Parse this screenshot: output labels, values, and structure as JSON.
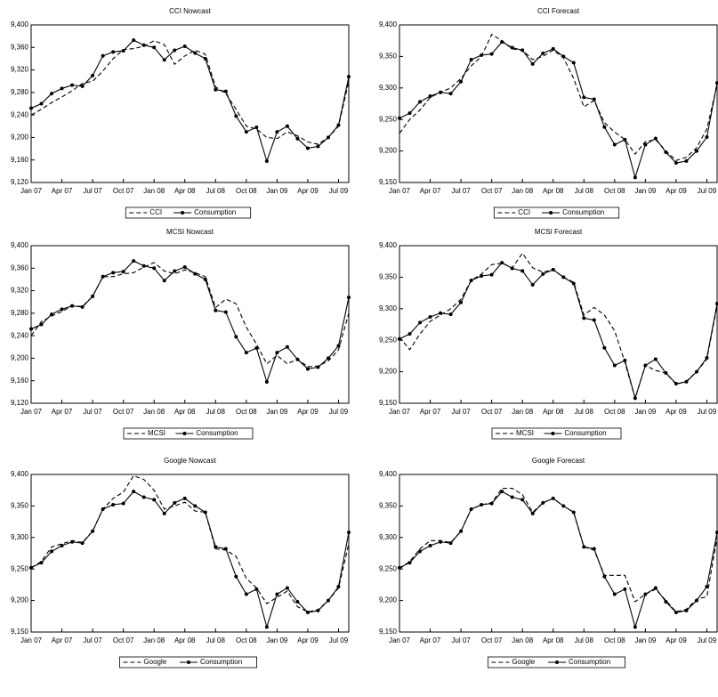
{
  "chart_data": [
    {
      "type": "line",
      "title": "CCI Nowcast",
      "legend": "bottom",
      "categories": [
        "Jan 07",
        null,
        null,
        "Apr 07",
        null,
        null,
        "Jul 07",
        null,
        null,
        "Oct 07",
        null,
        null,
        "Jan 08",
        null,
        null,
        "Apr 08",
        null,
        null,
        "Jul 08",
        null,
        null,
        "Oct 08",
        null,
        null,
        "Jan 09",
        null,
        null,
        "Apr 09",
        null,
        null,
        "Jul 09",
        null
      ],
      "ylim": [
        9120,
        9400
      ],
      "yticks": [
        {
          "value": 9120,
          "label": "9,120"
        },
        {
          "value": 9160,
          "label": "9,160"
        },
        {
          "value": 9200,
          "label": "9,200"
        },
        {
          "value": 9240,
          "label": "9,240"
        },
        {
          "value": 9280,
          "label": "9,280"
        },
        {
          "value": 9320,
          "label": "9,320"
        },
        {
          "value": 9360,
          "label": "9,360"
        },
        {
          "value": 9400,
          "label": "9,400"
        }
      ],
      "series": [
        {
          "name": "CCI",
          "color": "#000000",
          "style": "dashed",
          "values": [
            9240,
            9250,
            9262,
            9272,
            9283,
            9296,
            9300,
            9318,
            9340,
            9356,
            9358,
            9362,
            9372,
            9365,
            9330,
            9345,
            9355,
            9348,
            9290,
            9278,
            9250,
            9220,
            9215,
            9200,
            9198,
            9210,
            9203,
            9192,
            9188,
            9200,
            9220,
            9300
          ]
        },
        {
          "name": "Consumption",
          "color": "#000000",
          "style": "solid-markers",
          "values": [
            9252,
            9260,
            9278,
            9287,
            9293,
            9291,
            9310,
            9345,
            9352,
            9354,
            9373,
            9364,
            9360,
            9338,
            9355,
            9362,
            9350,
            9340,
            9285,
            9282,
            9238,
            9210,
            9218,
            9158,
            9210,
            9220,
            9198,
            9181,
            9184,
            9200,
            9222,
            9308
          ]
        }
      ]
    },
    {
      "type": "line",
      "title": "CCI Forecast",
      "legend": "bottom",
      "categories": [
        "Jan 07",
        null,
        null,
        "Apr 07",
        null,
        null,
        "Jul 07",
        null,
        null,
        "Oct 07",
        null,
        null,
        "Jan 08",
        null,
        null,
        "Apr 08",
        null,
        null,
        "Jul 08",
        null,
        null,
        "Oct 08",
        null,
        null,
        "Jan 09",
        null,
        null,
        "Apr 09",
        null,
        null,
        "Jul 09",
        null
      ],
      "ylim": [
        9150,
        9400
      ],
      "yticks": [
        {
          "value": 9150,
          "label": "9,150"
        },
        {
          "value": 9200,
          "label": "9,200"
        },
        {
          "value": 9250,
          "label": "9,250"
        },
        {
          "value": 9300,
          "label": "9,300"
        },
        {
          "value": 9350,
          "label": "9,350"
        },
        {
          "value": 9400,
          "label": "9,400"
        }
      ],
      "series": [
        {
          "name": "CCI",
          "color": "#000000",
          "style": "dashed",
          "values": [
            9228,
            9250,
            9265,
            9285,
            9293,
            9300,
            9315,
            9335,
            9350,
            9385,
            9375,
            9362,
            9360,
            9345,
            9350,
            9360,
            9348,
            9315,
            9270,
            9280,
            9245,
            9230,
            9218,
            9195,
            9215,
            9218,
            9200,
            9185,
            9190,
            9205,
            9235,
            9305
          ]
        },
        {
          "name": "Consumption",
          "color": "#000000",
          "style": "solid-markers",
          "values": [
            9252,
            9260,
            9278,
            9287,
            9293,
            9291,
            9310,
            9345,
            9352,
            9354,
            9373,
            9364,
            9360,
            9338,
            9355,
            9362,
            9350,
            9340,
            9285,
            9282,
            9238,
            9210,
            9218,
            9158,
            9210,
            9220,
            9198,
            9181,
            9184,
            9200,
            9222,
            9308
          ]
        }
      ]
    },
    {
      "type": "line",
      "title": "MCSI Nowcast",
      "legend": "bottom",
      "categories": [
        "Jan 07",
        null,
        null,
        "Apr 07",
        null,
        null,
        "Jul 07",
        null,
        null,
        "Oct 07",
        null,
        null,
        "Jan 08",
        null,
        null,
        "Apr 08",
        null,
        null,
        "Jul 08",
        null,
        null,
        "Oct 08",
        null,
        null,
        "Jan 09",
        null,
        null,
        "Apr 09",
        null,
        null,
        "Jul 09",
        null
      ],
      "ylim": [
        9120,
        9400
      ],
      "yticks": [
        {
          "value": 9120,
          "label": "9,120"
        },
        {
          "value": 9160,
          "label": "9,160"
        },
        {
          "value": 9200,
          "label": "9,200"
        },
        {
          "value": 9240,
          "label": "9,240"
        },
        {
          "value": 9280,
          "label": "9,280"
        },
        {
          "value": 9320,
          "label": "9,320"
        },
        {
          "value": 9360,
          "label": "9,360"
        },
        {
          "value": 9400,
          "label": "9,400"
        }
      ],
      "series": [
        {
          "name": "MCSI",
          "color": "#000000",
          "style": "dashed",
          "values": [
            9240,
            9265,
            9275,
            9283,
            9293,
            9292,
            9310,
            9345,
            9345,
            9350,
            9352,
            9362,
            9370,
            9355,
            9350,
            9357,
            9352,
            9345,
            9290,
            9305,
            9297,
            9255,
            9225,
            9190,
            9205,
            9190,
            9198,
            9185,
            9186,
            9195,
            9215,
            9280
          ]
        },
        {
          "name": "Consumption",
          "color": "#000000",
          "style": "solid-markers",
          "values": [
            9252,
            9260,
            9278,
            9287,
            9293,
            9291,
            9310,
            9345,
            9352,
            9354,
            9373,
            9364,
            9360,
            9338,
            9355,
            9362,
            9350,
            9340,
            9285,
            9282,
            9238,
            9210,
            9218,
            9158,
            9210,
            9220,
            9198,
            9181,
            9184,
            9200,
            9222,
            9308
          ]
        }
      ]
    },
    {
      "type": "line",
      "title": "MCSI Forecast",
      "legend": "bottom",
      "categories": [
        "Jan 07",
        null,
        null,
        "Apr 07",
        null,
        null,
        "Jul 07",
        null,
        null,
        "Oct 07",
        null,
        null,
        "Jan 08",
        null,
        null,
        "Apr 08",
        null,
        null,
        "Jul 08",
        null,
        null,
        "Oct 08",
        null,
        null,
        "Jan 09",
        null,
        null,
        "Apr 09",
        null,
        null,
        "Jul 09",
        null
      ],
      "ylim": [
        9150,
        9400
      ],
      "yticks": [
        {
          "value": 9150,
          "label": "9,150"
        },
        {
          "value": 9200,
          "label": "9,200"
        },
        {
          "value": 9250,
          "label": "9,250"
        },
        {
          "value": 9300,
          "label": "9,300"
        },
        {
          "value": 9350,
          "label": "9,350"
        },
        {
          "value": 9400,
          "label": "9,400"
        }
      ],
      "series": [
        {
          "name": "MCSI",
          "color": "#000000",
          "style": "dashed",
          "values": [
            9255,
            9235,
            9260,
            9280,
            9290,
            9300,
            9315,
            9345,
            9355,
            9370,
            9372,
            9365,
            9388,
            9365,
            9358,
            9362,
            9350,
            9342,
            9290,
            9302,
            9290,
            9265,
            9215,
            9158,
            9210,
            9202,
            9198,
            9180,
            9185,
            9200,
            9220,
            9305
          ]
        },
        {
          "name": "Consumption",
          "color": "#000000",
          "style": "solid-markers",
          "values": [
            9252,
            9260,
            9278,
            9287,
            9293,
            9291,
            9310,
            9345,
            9352,
            9354,
            9373,
            9364,
            9360,
            9338,
            9355,
            9362,
            9350,
            9340,
            9285,
            9282,
            9238,
            9210,
            9218,
            9158,
            9210,
            9220,
            9198,
            9181,
            9184,
            9200,
            9222,
            9308
          ]
        }
      ]
    },
    {
      "type": "line",
      "title": "Google Nowcast",
      "legend": "bottom",
      "categories": [
        "Jan 07",
        null,
        null,
        "Apr 07",
        null,
        null,
        "Jul 07",
        null,
        null,
        "Oct 07",
        null,
        null,
        "Jan 08",
        null,
        null,
        "Apr 08",
        null,
        null,
        "Jul 08",
        null,
        null,
        "Oct 08",
        null,
        null,
        "Jan 09",
        null,
        null,
        "Apr 09",
        null,
        null,
        "Jul 09",
        null
      ],
      "ylim": [
        9150,
        9400
      ],
      "yticks": [
        {
          "value": 9150,
          "label": "9,150"
        },
        {
          "value": 9200,
          "label": "9,200"
        },
        {
          "value": 9250,
          "label": "9,250"
        },
        {
          "value": 9300,
          "label": "9,300"
        },
        {
          "value": 9350,
          "label": "9,350"
        },
        {
          "value": 9400,
          "label": "9,400"
        }
      ],
      "series": [
        {
          "name": "Google",
          "color": "#000000",
          "style": "dashed",
          "values": [
            9252,
            9262,
            9285,
            9290,
            9295,
            9292,
            9310,
            9345,
            9362,
            9372,
            9398,
            9392,
            9375,
            9345,
            9350,
            9356,
            9342,
            9340,
            9282,
            9280,
            9270,
            9235,
            9220,
            9195,
            9205,
            9215,
            9190,
            9182,
            9185,
            9200,
            9220,
            9290
          ]
        },
        {
          "name": "Consumption",
          "color": "#000000",
          "style": "solid-markers",
          "values": [
            9252,
            9260,
            9278,
            9287,
            9293,
            9291,
            9310,
            9345,
            9352,
            9354,
            9373,
            9364,
            9360,
            9338,
            9355,
            9362,
            9350,
            9340,
            9285,
            9282,
            9238,
            9210,
            9218,
            9158,
            9210,
            9220,
            9198,
            9181,
            9184,
            9200,
            9222,
            9308
          ]
        }
      ]
    },
    {
      "type": "line",
      "title": "Google Forecast",
      "legend": "bottom",
      "categories": [
        "Jan 07",
        null,
        null,
        "Apr 07",
        null,
        null,
        "Jul 07",
        null,
        null,
        "Oct 07",
        null,
        null,
        "Jan 08",
        null,
        null,
        "Apr 08",
        null,
        null,
        "Jul 08",
        null,
        null,
        "Oct 08",
        null,
        null,
        "Jan 09",
        null,
        null,
        "Apr 09",
        null,
        null,
        "Jul 09",
        null
      ],
      "ylim": [
        9150,
        9400
      ],
      "yticks": [
        {
          "value": 9150,
          "label": "9,150"
        },
        {
          "value": 9200,
          "label": "9,200"
        },
        {
          "value": 9250,
          "label": "9,250"
        },
        {
          "value": 9300,
          "label": "9,300"
        },
        {
          "value": 9350,
          "label": "9,350"
        },
        {
          "value": 9400,
          "label": "9,400"
        }
      ],
      "series": [
        {
          "name": "Google",
          "color": "#000000",
          "style": "dashed",
          "values": [
            9250,
            9262,
            9282,
            9295,
            9295,
            9292,
            9310,
            9345,
            9352,
            9355,
            9378,
            9378,
            9368,
            9340,
            9355,
            9362,
            9350,
            9340,
            9285,
            9280,
            9240,
            9240,
            9240,
            9198,
            9210,
            9218,
            9200,
            9182,
            9186,
            9202,
            9206,
            9300
          ]
        },
        {
          "name": "Consumption",
          "color": "#000000",
          "style": "solid-markers",
          "values": [
            9252,
            9260,
            9278,
            9287,
            9293,
            9291,
            9310,
            9345,
            9352,
            9354,
            9373,
            9364,
            9360,
            9338,
            9355,
            9362,
            9350,
            9340,
            9285,
            9282,
            9238,
            9210,
            9218,
            9158,
            9210,
            9220,
            9198,
            9181,
            9184,
            9200,
            9222,
            9308
          ]
        }
      ]
    }
  ]
}
